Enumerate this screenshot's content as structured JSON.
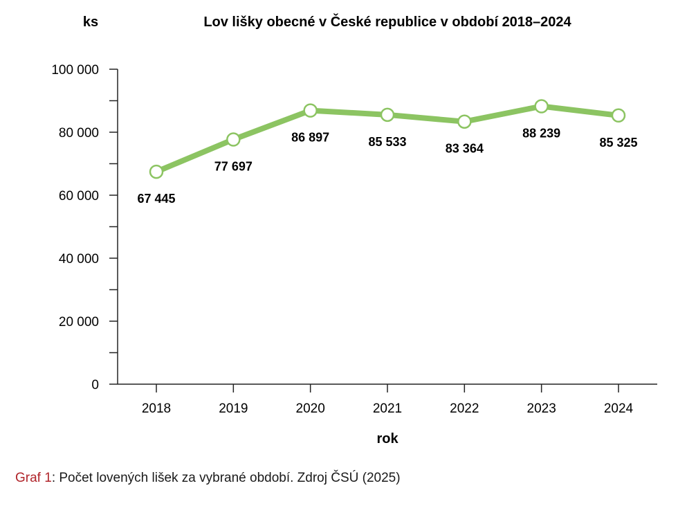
{
  "chart_data": {
    "type": "line",
    "title": "Lov lišky obecné v České republice v období 2018–2024",
    "ylabel": "ks",
    "xlabel": "rok",
    "categories": [
      "2018",
      "2019",
      "2020",
      "2021",
      "2022",
      "2023",
      "2024"
    ],
    "values": [
      67445,
      77697,
      86897,
      85533,
      83364,
      88239,
      85325
    ],
    "data_labels": [
      "67 445",
      "77 697",
      "86 897",
      "85 533",
      "83 364",
      "88 239",
      "85 325"
    ],
    "ylim": [
      0,
      100000
    ],
    "yticks": [
      0,
      20000,
      40000,
      60000,
      80000,
      100000
    ],
    "ytick_labels": [
      "0",
      "20 000",
      "40 000",
      "60 000",
      "80 000",
      "100 000"
    ],
    "grid": false,
    "line_color": "#8cc462"
  },
  "caption": {
    "label": "Graf 1",
    "text": ": Počet lovených lišek za vybrané období. Zdroj ČSÚ (2025)"
  }
}
